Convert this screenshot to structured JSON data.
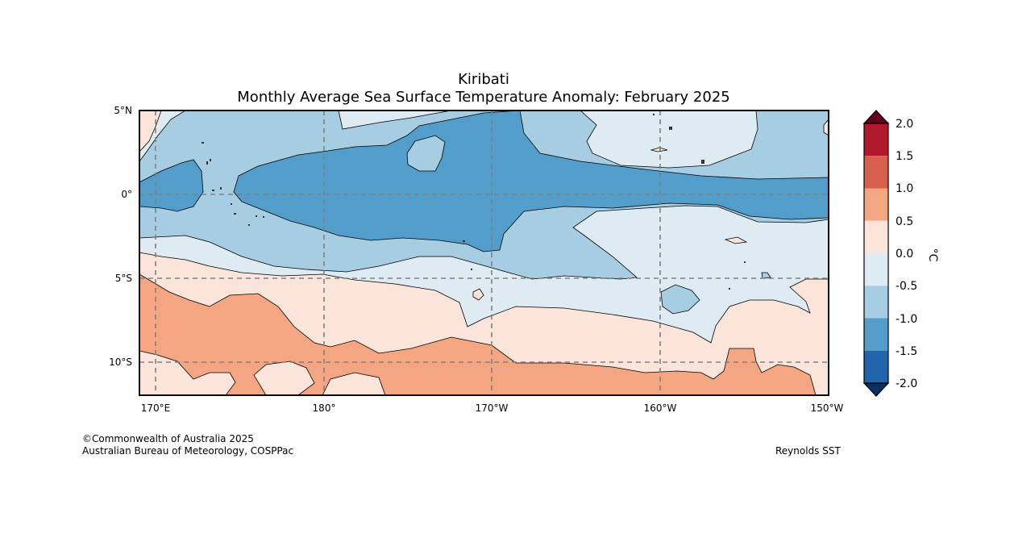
{
  "title": "Kiribati",
  "subtitle": "Monthly Average Sea Surface Temperature Anomaly: February 2025",
  "lat_ticks": [
    "5°N",
    "0°",
    "5°S",
    "10°S"
  ],
  "lon_ticks": [
    "170°E",
    "180°",
    "170°W",
    "160°W",
    "150°W"
  ],
  "colorbar": {
    "unit": "°C",
    "levels": [
      "2.0",
      "1.5",
      "1.0",
      "0.5",
      "0.0",
      "-0.5",
      "-1.0",
      "-1.5",
      "-2.0"
    ],
    "colors": [
      "#67001f",
      "#b2182b",
      "#d6604d",
      "#f4a582",
      "#fbe5da",
      "#deebf3",
      "#a7cde3",
      "#539dcb",
      "#2166ac",
      "#053061"
    ]
  },
  "credits": {
    "copyright": "©Commonwealth of Australia 2025",
    "agency": "Australian Bureau of Meteorology, COSPPac",
    "source": "Reynolds SST"
  }
}
